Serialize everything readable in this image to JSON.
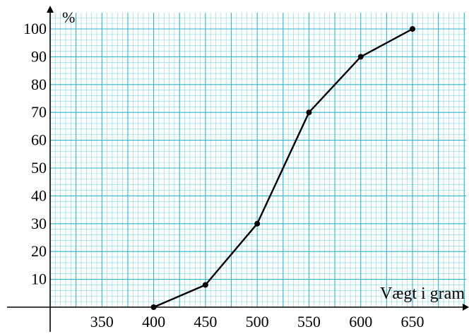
{
  "chart_data": {
    "type": "line",
    "ylabel": "%",
    "xlabel": "Vægt i gram",
    "x_ticks": [
      350,
      400,
      450,
      500,
      550,
      600,
      650
    ],
    "y_ticks": [
      10,
      20,
      30,
      40,
      50,
      60,
      70,
      80,
      90,
      100
    ],
    "xlim": [
      300,
      700
    ],
    "ylim": [
      -2,
      105
    ],
    "grid": true,
    "series": [
      {
        "x": [
          400,
          450,
          500,
          550,
          600,
          650
        ],
        "y": [
          0,
          8,
          30,
          70,
          90,
          100
        ],
        "color": "#000000"
      }
    ]
  },
  "colors": {
    "grid_major": "#2fb5cc",
    "grid_minor": "#7fd6e4",
    "line": "#000000"
  }
}
